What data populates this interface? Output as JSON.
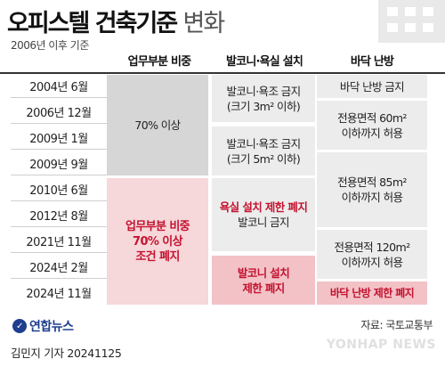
{
  "title": {
    "main": "오피스텔 건축기준",
    "sub": "변화"
  },
  "subtitle": "2006년 이후 기준",
  "columns": [
    "업무부분 비중",
    "발코니·욕실 설치",
    "바닥 난방"
  ],
  "dates": [
    "2004년 6월",
    "2006년 12월",
    "2009년 1월",
    "2009년 9월",
    "2010년 6월",
    "2012년 8월",
    "2021년 11월",
    "2024년 2월",
    "2024년 11월"
  ],
  "work_ratio": {
    "before": "70% 이상",
    "after": [
      "업무부분 비중",
      "70% 이상",
      "조건 폐지"
    ]
  },
  "balcony": {
    "b1": [
      "발코니·욕조 금지",
      "(크기 3m² 이하)"
    ],
    "b2": [
      "발코니·욕조 금지",
      "(크기 5m² 이하)"
    ],
    "b3": [
      "욕실 설치 제한 폐지",
      "발코니 금지"
    ],
    "b4": [
      "발코니 설치",
      "제한 폐지"
    ]
  },
  "heating": {
    "h1": "바닥 난방 금지",
    "h2": [
      "전용면적 60m²",
      "이하까지 허용"
    ],
    "h3": [
      "전용면적 85m²",
      "이하까지 허용"
    ],
    "h4": [
      "전용면적 120m²",
      "이하까지 허용"
    ],
    "h5": "바닥 난방 제한 폐지"
  },
  "logo": "연합뉴스",
  "source": "자료: 국토교통부",
  "footer": "김민지 기자  20241125",
  "watermark": "YONHAP NEWS"
}
